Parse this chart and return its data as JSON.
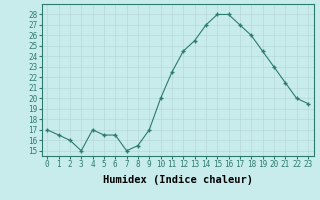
{
  "x": [
    0,
    1,
    2,
    3,
    4,
    5,
    6,
    7,
    8,
    9,
    10,
    11,
    12,
    13,
    14,
    15,
    16,
    17,
    18,
    19,
    20,
    21,
    22,
    23
  ],
  "y": [
    17,
    16.5,
    16,
    15,
    17,
    16.5,
    16.5,
    15,
    15.5,
    17,
    20,
    22.5,
    24.5,
    25.5,
    27,
    28,
    28,
    27,
    26,
    24.5,
    23,
    21.5,
    20,
    19.5
  ],
  "line_color": "#2d7a6e",
  "marker": "+",
  "marker_color": "#2d7a6e",
  "bg_color": "#c8ecec",
  "grid_color": "#b8d8d8",
  "xlabel": "Humidex (Indice chaleur)",
  "ylim": [
    14.5,
    29
  ],
  "xlim": [
    -0.5,
    23.5
  ],
  "yticks": [
    15,
    16,
    17,
    18,
    19,
    20,
    21,
    22,
    23,
    24,
    25,
    26,
    27,
    28
  ],
  "xticks": [
    0,
    1,
    2,
    3,
    4,
    5,
    6,
    7,
    8,
    9,
    10,
    11,
    12,
    13,
    14,
    15,
    16,
    17,
    18,
    19,
    20,
    21,
    22,
    23
  ],
  "tick_fontsize": 5.5,
  "xlabel_fontsize": 7.5,
  "marker_size": 3,
  "linewidth": 0.8
}
